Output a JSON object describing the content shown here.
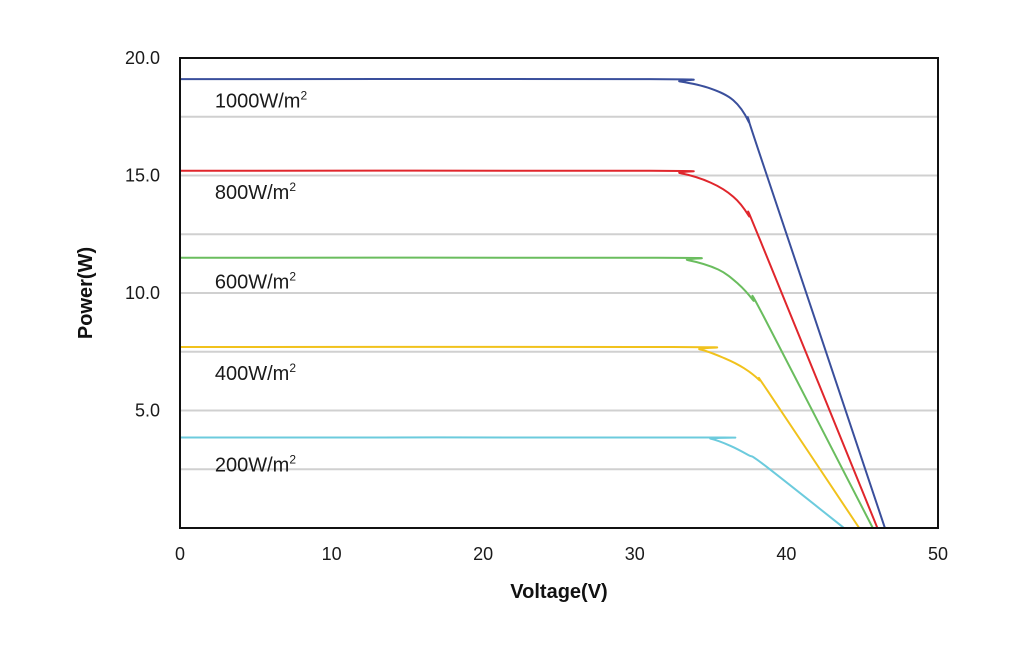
{
  "chart_data": {
    "type": "line",
    "title": "",
    "xlabel": "Voltage(V)",
    "ylabel": "Power(W)",
    "xlim": [
      0,
      50
    ],
    "ylim": [
      0,
      20
    ],
    "x_ticks": [
      0,
      10,
      20,
      30,
      40,
      50
    ],
    "x_tick_labels": [
      "0",
      "10",
      "20",
      "30",
      "40",
      "50"
    ],
    "y_ticks": [
      5,
      10,
      15,
      20
    ],
    "y_tick_labels": [
      "5.0",
      "10.0",
      "15.0",
      "20.0"
    ],
    "grid_y": [
      2.5,
      5,
      7.5,
      10,
      12.5,
      15,
      17.5
    ],
    "legend": "inline-left",
    "series": [
      {
        "label_base": "1000W/m",
        "label_sup": "2",
        "label_at": [
          2.3,
          18.2
        ],
        "color": "#3a4f9c",
        "x": [
          0,
          31,
          33,
          35,
          36.5,
          37.5,
          38.3,
          46.5
        ],
        "y": [
          19.1,
          19.1,
          19.0,
          18.7,
          18.2,
          17.3,
          15.8,
          0
        ]
      },
      {
        "label_base": "800W/m",
        "label_sup": "2",
        "label_at": [
          2.3,
          14.3
        ],
        "color": "#e0262c",
        "x": [
          0,
          31,
          33,
          35,
          36.5,
          37.5,
          38.3,
          46
        ],
        "y": [
          15.2,
          15.2,
          15.1,
          14.7,
          14.1,
          13.3,
          12.2,
          0
        ]
      },
      {
        "label_base": "600W/m",
        "label_sup": "2",
        "label_at": [
          2.3,
          10.5
        ],
        "color": "#6abd5e",
        "x": [
          0,
          31.5,
          33.5,
          35.5,
          36.8,
          37.8,
          38.5,
          45.7
        ],
        "y": [
          11.5,
          11.5,
          11.4,
          11.0,
          10.4,
          9.7,
          9.0,
          0
        ]
      },
      {
        "label_base": "400W/m",
        "label_sup": "2",
        "label_at": [
          2.3,
          6.6
        ],
        "color": "#f1c21c",
        "x": [
          0,
          32.5,
          34.3,
          36,
          37.2,
          38.2,
          38.8,
          44.8
        ],
        "y": [
          7.7,
          7.7,
          7.6,
          7.2,
          6.8,
          6.3,
          5.8,
          0
        ]
      },
      {
        "label_base": "200W/m",
        "label_sup": "2",
        "label_at": [
          2.3,
          2.7
        ],
        "color": "#6ccbdd",
        "x": [
          0,
          33.8,
          35,
          36.3,
          37.5,
          38.5,
          43.8
        ],
        "y": [
          3.85,
          3.85,
          3.8,
          3.5,
          3.1,
          2.7,
          0
        ]
      }
    ]
  }
}
